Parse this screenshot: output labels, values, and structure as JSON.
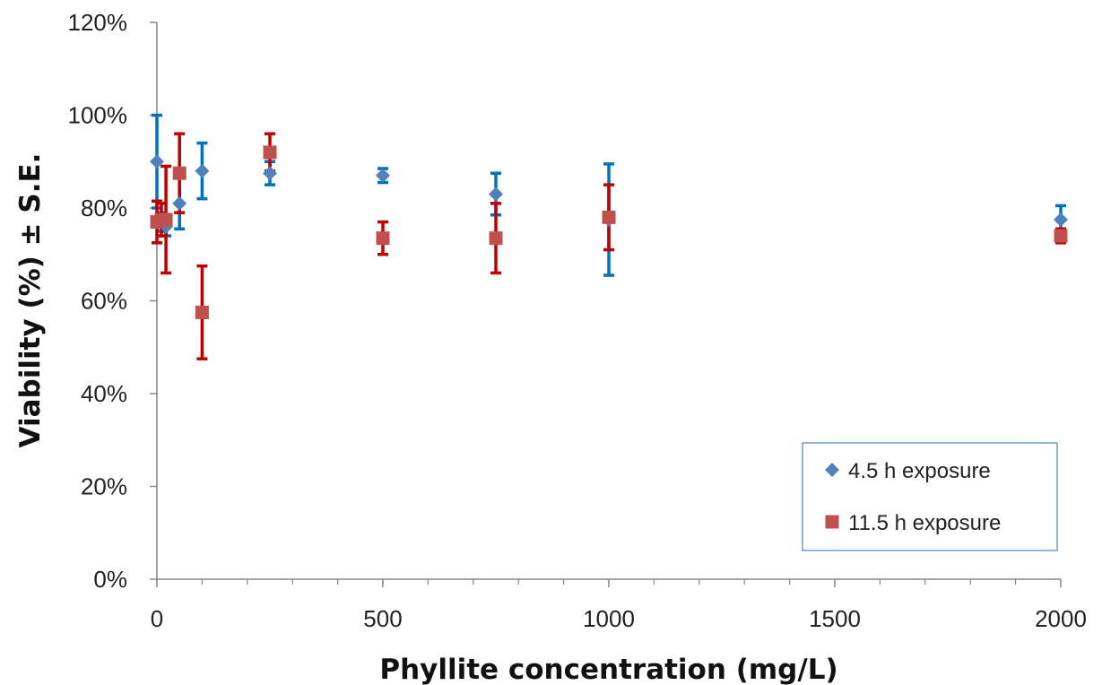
{
  "chart_data": {
    "type": "scatter",
    "xlabel": "Phyllite concentration (mg/L)",
    "ylabel": "Viability (%) ± S.E.",
    "xlim": [
      0,
      2000
    ],
    "ylim": [
      0,
      120
    ],
    "x_ticks": [
      0,
      500,
      1000,
      1500,
      2000
    ],
    "x_tick_labels": [
      "0",
      "500",
      "1000",
      "1500",
      "2000"
    ],
    "x_minor_step": 100,
    "y_ticks": [
      0,
      20,
      40,
      60,
      80,
      100,
      120
    ],
    "y_tick_labels": [
      "0%",
      "20%",
      "40%",
      "60%",
      "80%",
      "100%",
      "120%"
    ],
    "grid": false,
    "legend_position": "bottom-right",
    "series": [
      {
        "name": "4.5 h exposure",
        "marker": "diamond",
        "color": "#4F81BD",
        "error_color": "#0070C0",
        "points": [
          {
            "x": 0,
            "y": 90,
            "err": 10
          },
          {
            "x": 10,
            "y": 77,
            "err": 2
          },
          {
            "x": 20,
            "y": 76,
            "err": 2
          },
          {
            "x": 50,
            "y": 81,
            "err": 5.5
          },
          {
            "x": 100,
            "y": 88,
            "err": 6
          },
          {
            "x": 250,
            "y": 87.5,
            "err": 2.5
          },
          {
            "x": 500,
            "y": 87,
            "err": 1.5
          },
          {
            "x": 750,
            "y": 83,
            "err": 4.5
          },
          {
            "x": 1000,
            "y": 77.5,
            "err": 12
          },
          {
            "x": 2000,
            "y": 77.5,
            "err": 3
          }
        ]
      },
      {
        "name": "11.5 h exposure",
        "marker": "square",
        "color": "#C0504D",
        "error_color": "#C00000",
        "points": [
          {
            "x": 0,
            "y": 77,
            "err": 4.5
          },
          {
            "x": 10,
            "y": 77.5,
            "err": 3.5
          },
          {
            "x": 20,
            "y": 77.5,
            "err": 11.5
          },
          {
            "x": 50,
            "y": 87.5,
            "err": 8.5
          },
          {
            "x": 100,
            "y": 57.5,
            "err": 10
          },
          {
            "x": 250,
            "y": 92,
            "err": 4
          },
          {
            "x": 500,
            "y": 73.5,
            "err": 3.5
          },
          {
            "x": 750,
            "y": 73.5,
            "err": 7.5
          },
          {
            "x": 1000,
            "y": 78,
            "err": 7
          },
          {
            "x": 2000,
            "y": 74,
            "err": 1.5
          }
        ]
      }
    ]
  }
}
